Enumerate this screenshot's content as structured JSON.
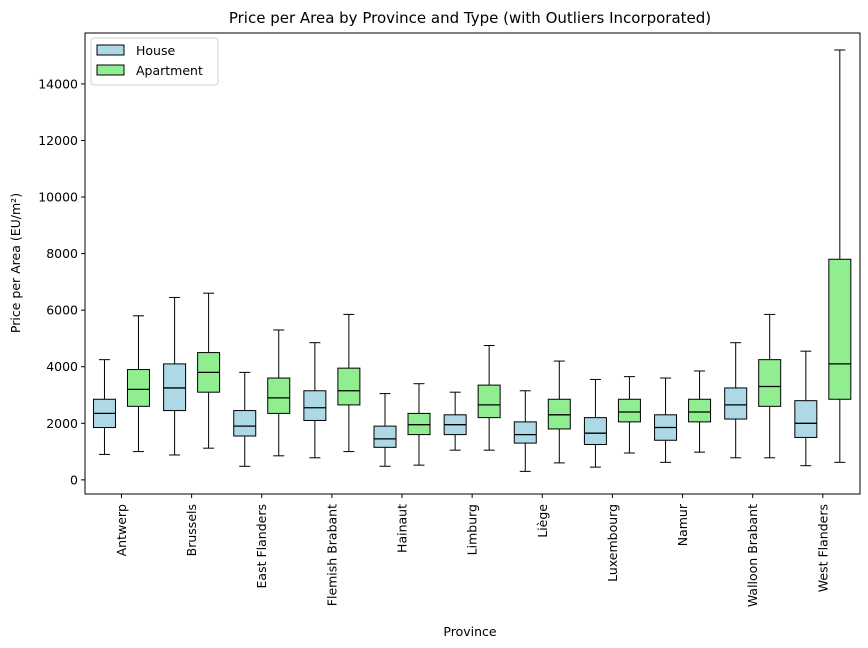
{
  "chart_data": {
    "type": "boxplot",
    "title": "Price per Area by Province and Type (with Outliers Incorporated)",
    "xlabel": "Province",
    "ylabel": "Price per Area (EU/m²)",
    "ylim": [
      -500,
      15800
    ],
    "yticks": [
      0,
      2000,
      4000,
      6000,
      8000,
      10000,
      12000,
      14000
    ],
    "ytick_labels": [
      "0",
      "2000",
      "4000",
      "6000",
      "8000",
      "10000",
      "12000",
      "14000"
    ],
    "grid": false,
    "legend_placement": "top-left",
    "categories": [
      "Antwerp",
      "Brussels",
      "East Flanders",
      "Flemish Brabant",
      "Hainaut",
      "Limburg",
      "Liège",
      "Luxembourg",
      "Namur",
      "Walloon Brabant",
      "West Flanders"
    ],
    "series": [
      {
        "name": "House",
        "color": "#add8e6",
        "boxes": [
          {
            "min": 900,
            "q1": 1850,
            "median": 2350,
            "q3": 2850,
            "max": 4250
          },
          {
            "min": 880,
            "q1": 2450,
            "median": 3250,
            "q3": 4100,
            "max": 6450
          },
          {
            "min": 480,
            "q1": 1550,
            "median": 1900,
            "q3": 2450,
            "max": 3800
          },
          {
            "min": 780,
            "q1": 2100,
            "median": 2550,
            "q3": 3150,
            "max": 4850
          },
          {
            "min": 480,
            "q1": 1150,
            "median": 1450,
            "q3": 1900,
            "max": 3050
          },
          {
            "min": 1050,
            "q1": 1600,
            "median": 1950,
            "q3": 2300,
            "max": 3100
          },
          {
            "min": 300,
            "q1": 1300,
            "median": 1600,
            "q3": 2050,
            "max": 3150
          },
          {
            "min": 450,
            "q1": 1250,
            "median": 1650,
            "q3": 2200,
            "max": 3550
          },
          {
            "min": 620,
            "q1": 1400,
            "median": 1850,
            "q3": 2300,
            "max": 3600
          },
          {
            "min": 780,
            "q1": 2150,
            "median": 2650,
            "q3": 3250,
            "max": 4850
          },
          {
            "min": 500,
            "q1": 1500,
            "median": 2000,
            "q3": 2800,
            "max": 4550
          }
        ]
      },
      {
        "name": "Apartment",
        "color": "#90ee90",
        "boxes": [
          {
            "min": 1000,
            "q1": 2600,
            "median": 3200,
            "q3": 3900,
            "max": 5800
          },
          {
            "min": 1120,
            "q1": 3100,
            "median": 3800,
            "q3": 4500,
            "max": 6600
          },
          {
            "min": 850,
            "q1": 2350,
            "median": 2900,
            "q3": 3600,
            "max": 5300
          },
          {
            "min": 1000,
            "q1": 2650,
            "median": 3150,
            "q3": 3950,
            "max": 5850
          },
          {
            "min": 520,
            "q1": 1600,
            "median": 1950,
            "q3": 2350,
            "max": 3400
          },
          {
            "min": 1050,
            "q1": 2200,
            "median": 2650,
            "q3": 3350,
            "max": 4750
          },
          {
            "min": 600,
            "q1": 1800,
            "median": 2300,
            "q3": 2850,
            "max": 4200
          },
          {
            "min": 950,
            "q1": 2050,
            "median": 2400,
            "q3": 2850,
            "max": 3650
          },
          {
            "min": 980,
            "q1": 2050,
            "median": 2400,
            "q3": 2850,
            "max": 3850
          },
          {
            "min": 780,
            "q1": 2600,
            "median": 3300,
            "q3": 4250,
            "max": 5850
          },
          {
            "min": 620,
            "q1": 2850,
            "median": 4100,
            "q3": 7800,
            "max": 15200
          }
        ]
      }
    ]
  }
}
